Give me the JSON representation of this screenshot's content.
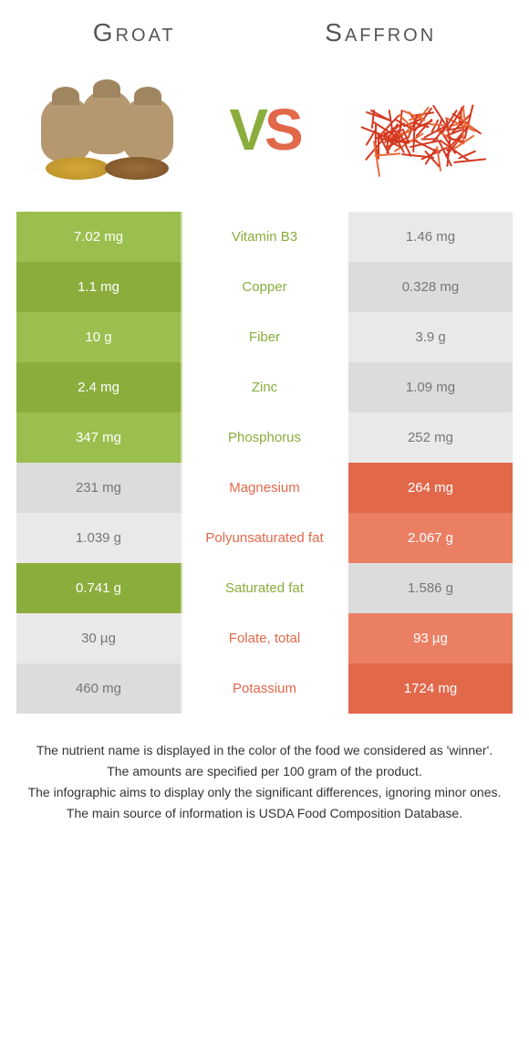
{
  "foods": {
    "left": {
      "name": "Groat",
      "color": "#8aad3c"
    },
    "right": {
      "name": "Saffron",
      "color": "#e2684a"
    }
  },
  "vs": {
    "v": "V",
    "s": "S"
  },
  "colors": {
    "groat_row_light": "#9bbf4e",
    "groat_row_dark": "#8aad3c",
    "saffron_row_light": "#ea7f64",
    "saffron_row_dark": "#e2684a",
    "neutral_left_light": "#e9e9e9",
    "neutral_left_dark": "#dcdcdc",
    "neutral_right_light": "#e9e9e9",
    "neutral_right_dark": "#dcdcdc",
    "text_neutral": "#777"
  },
  "rows": [
    {
      "nutrient": "Vitamin B3",
      "left": "7.02 mg",
      "right": "1.46 mg",
      "winner": "left"
    },
    {
      "nutrient": "Copper",
      "left": "1.1 mg",
      "right": "0.328 mg",
      "winner": "left"
    },
    {
      "nutrient": "Fiber",
      "left": "10 g",
      "right": "3.9 g",
      "winner": "left"
    },
    {
      "nutrient": "Zinc",
      "left": "2.4 mg",
      "right": "1.09 mg",
      "winner": "left"
    },
    {
      "nutrient": "Phosphorus",
      "left": "347 mg",
      "right": "252 mg",
      "winner": "left"
    },
    {
      "nutrient": "Magnesium",
      "left": "231 mg",
      "right": "264 mg",
      "winner": "right"
    },
    {
      "nutrient": "Polyunsaturated fat",
      "left": "1.039 g",
      "right": "2.067 g",
      "winner": "right"
    },
    {
      "nutrient": "Saturated fat",
      "left": "0.741 g",
      "right": "1.586 g",
      "winner": "left"
    },
    {
      "nutrient": "Folate, total",
      "left": "30 µg",
      "right": "93 µg",
      "winner": "right"
    },
    {
      "nutrient": "Potassium",
      "left": "460 mg",
      "right": "1724 mg",
      "winner": "right"
    }
  ],
  "footnotes": [
    "The nutrient name is displayed in the color of the food we considered as 'winner'.",
    "The amounts are specified per 100 gram of the product.",
    "The infographic aims to display only the significant differences, ignoring minor ones.",
    "The main source of information is USDA Food Composition Database."
  ]
}
